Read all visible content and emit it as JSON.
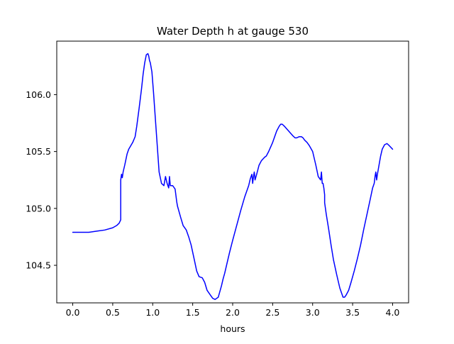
{
  "chart_data": {
    "type": "line",
    "title": "Water Depth h at gauge 530",
    "xlabel": "hours",
    "ylabel": "",
    "xlim": [
      -0.2,
      4.2
    ],
    "ylim": [
      104.17,
      106.47
    ],
    "xticks": [
      0.0,
      0.5,
      1.0,
      1.5,
      2.0,
      2.5,
      3.0,
      3.5,
      4.0
    ],
    "xtick_labels": [
      "0.0",
      "0.5",
      "1.0",
      "1.5",
      "2.0",
      "2.5",
      "3.0",
      "3.5",
      "4.0"
    ],
    "yticks": [
      104.5,
      105.0,
      105.5,
      106.0
    ],
    "ytick_labels": [
      "104.5",
      "105.0",
      "105.5",
      "106.0"
    ],
    "grid": false,
    "series": [
      {
        "color": "#0000ff",
        "x": [
          0.0,
          0.1,
          0.2,
          0.3,
          0.4,
          0.5,
          0.55,
          0.58,
          0.6,
          0.6,
          0.61,
          0.62,
          0.63,
          0.65,
          0.68,
          0.7,
          0.75,
          0.78,
          0.8,
          0.83,
          0.86,
          0.88,
          0.9,
          0.92,
          0.94,
          0.95,
          0.96,
          0.97,
          0.99,
          1.01,
          1.03,
          1.05,
          1.08,
          1.11,
          1.14,
          1.16,
          1.18,
          1.2,
          1.21,
          1.22,
          1.25,
          1.28,
          1.3,
          1.31,
          1.33,
          1.35,
          1.38,
          1.42,
          1.45,
          1.48,
          1.52,
          1.55,
          1.58,
          1.62,
          1.65,
          1.68,
          1.72,
          1.75,
          1.78,
          1.82,
          1.86,
          1.88,
          1.9,
          1.93,
          1.96,
          2.0,
          2.05,
          2.1,
          2.15,
          2.2,
          2.22,
          2.24,
          2.25,
          2.26,
          2.27,
          2.28,
          2.3,
          2.33,
          2.36,
          2.4,
          2.42,
          2.45,
          2.5,
          2.55,
          2.58,
          2.6,
          2.62,
          2.65,
          2.7,
          2.75,
          2.78,
          2.8,
          2.83,
          2.86,
          2.88,
          2.9,
          2.93,
          2.96,
          3.0,
          3.04,
          3.07,
          3.1,
          3.11,
          3.12,
          3.13,
          3.14,
          3.15,
          3.15,
          3.17,
          3.2,
          3.23,
          3.26,
          3.3,
          3.34,
          3.38,
          3.4,
          3.42,
          3.45,
          3.48,
          3.52,
          3.56,
          3.6,
          3.64,
          3.68,
          3.72,
          3.75,
          3.77,
          3.78,
          3.79,
          3.8,
          3.81,
          3.83,
          3.85,
          3.87,
          3.9,
          3.93,
          3.96,
          4.0
        ],
        "y": [
          104.79,
          104.79,
          104.79,
          104.8,
          104.81,
          104.83,
          104.85,
          104.87,
          104.9,
          105.25,
          105.3,
          105.27,
          105.32,
          105.38,
          105.48,
          105.52,
          105.58,
          105.63,
          105.72,
          105.88,
          106.05,
          106.18,
          106.28,
          106.35,
          106.36,
          106.34,
          106.3,
          106.28,
          106.2,
          106.02,
          105.82,
          105.62,
          105.32,
          105.22,
          105.2,
          105.28,
          105.22,
          105.18,
          105.28,
          105.2,
          105.2,
          105.17,
          105.06,
          105.02,
          104.97,
          104.92,
          104.85,
          104.81,
          104.75,
          104.68,
          104.55,
          104.45,
          104.4,
          104.39,
          104.35,
          104.28,
          104.24,
          104.21,
          104.2,
          104.22,
          104.32,
          104.38,
          104.43,
          104.52,
          104.61,
          104.72,
          104.85,
          104.98,
          105.1,
          105.2,
          105.26,
          105.3,
          105.22,
          105.28,
          105.32,
          105.25,
          105.3,
          105.38,
          105.42,
          105.45,
          105.46,
          105.5,
          105.58,
          105.68,
          105.72,
          105.74,
          105.74,
          105.72,
          105.68,
          105.64,
          105.62,
          105.62,
          105.63,
          105.63,
          105.62,
          105.6,
          105.58,
          105.55,
          105.5,
          105.38,
          105.28,
          105.25,
          105.32,
          105.22,
          105.22,
          105.18,
          105.12,
          105.05,
          104.95,
          104.82,
          104.68,
          104.55,
          104.42,
          104.3,
          104.22,
          104.22,
          104.24,
          104.28,
          104.35,
          104.45,
          104.56,
          104.68,
          104.82,
          104.95,
          105.08,
          105.18,
          105.22,
          105.28,
          105.32,
          105.25,
          105.3,
          105.38,
          105.46,
          105.52,
          105.56,
          105.57,
          105.55,
          105.52
        ]
      }
    ]
  }
}
